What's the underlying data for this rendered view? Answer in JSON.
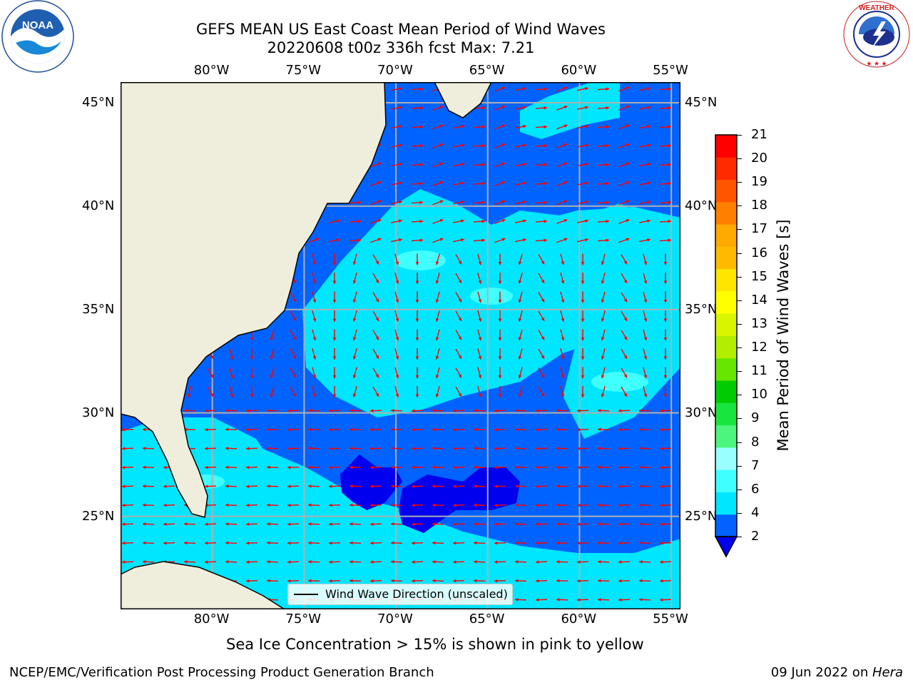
{
  "title": {
    "line1": "GEFS MEAN US East Coast Mean Period of Wind Waves",
    "line2": "20220608 t00z 336h fcst   Max: 7.21"
  },
  "logos": {
    "left": {
      "name": "NOAA",
      "text": "NOAA",
      "ring_text": "NATIONAL OCEANIC AND ATMOSPHERIC ADMINISTRATION  U.S. DEPARTMENT OF COMMERCE"
    },
    "right": {
      "name": "National Weather Service",
      "ring_text": "NATIONAL WEATHER SERVICE"
    }
  },
  "map": {
    "longitude_labels": [
      "80°W",
      "75°W",
      "70°W",
      "65°W",
      "60°W",
      "55°W"
    ],
    "latitude_labels": [
      "45°N",
      "40°N",
      "35°N",
      "30°N",
      "25°N"
    ],
    "lon_range": [
      -85,
      -54.5
    ],
    "lat_range": [
      20.5,
      46
    ],
    "gridlines": true,
    "land_color": "#efeedc",
    "arrow_color": "#ff0000",
    "max_value": 7.21,
    "legend": {
      "label": "Wind Wave Direction (unscaled)",
      "placement": "bottom-center"
    }
  },
  "colorbar": {
    "label": "Mean Period of Wind Waves [s]",
    "ticks": [
      "21",
      "20",
      "19",
      "18",
      "17",
      "16",
      "15",
      "14",
      "13",
      "12",
      "11",
      "10",
      "9",
      "8",
      "7",
      "6",
      "4",
      "2"
    ],
    "colors_low_to_high": [
      "#0063ff",
      "#00e6ff",
      "#40ffff",
      "#99ffff",
      "#4cf57d",
      "#19e63c",
      "#00cc00",
      "#66e600",
      "#b3ee00",
      "#d9f500",
      "#ffff00",
      "#ffe600",
      "#ffbb00",
      "#ffaa00",
      "#ff7f00",
      "#ff5500",
      "#ff2a00",
      "#ff0000"
    ],
    "under_color": "#0000ee"
  },
  "note": "Sea Ice Concentration > 15% is shown in pink to yellow",
  "footer": {
    "left": "NCEP/EMC/Verification Post Processing Product Generation Branch",
    "right_date": "09 Jun 2022 on ",
    "right_host": "Hera"
  }
}
